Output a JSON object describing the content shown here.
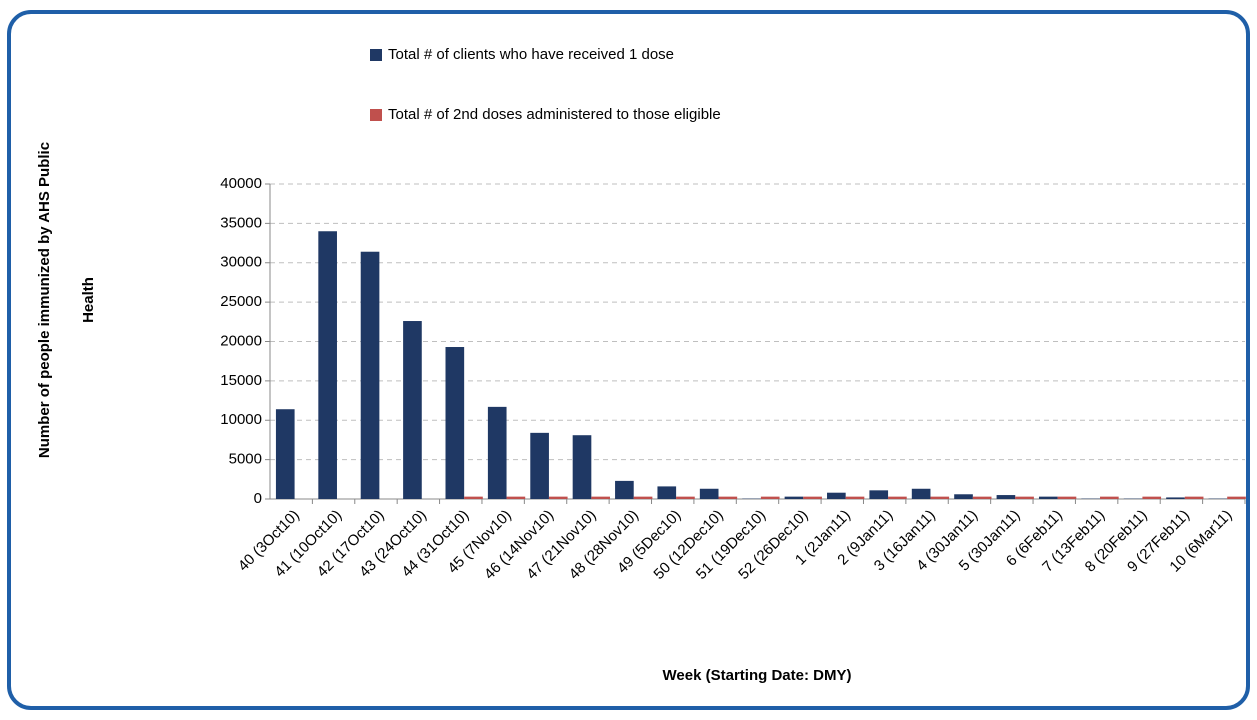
{
  "chart_data": {
    "type": "bar",
    "ylabel": [
      "Number of people immunized by AHS Public",
      "Health"
    ],
    "xlabel": "Week (Starting Date: DMY)",
    "categories": [
      "40 (3Oct10)",
      "41 (10Oct10)",
      "42 (17Oct10)",
      "43 (24Oct10)",
      "44 (31Oct10)",
      "45 (7Nov10)",
      "46 (14Nov10)",
      "47 (21Nov10)",
      "48 (28Nov10)",
      "49 (5Dec10)",
      "50 (12Dec10)",
      "51 (19Dec10)",
      "52 (26Dec10)",
      "1 (2Jan11)",
      "2 (9Jan11)",
      "3 (16Jan11)",
      "4 (30Jan11)",
      "5 (30Jan11)",
      "6 (6Feb11)",
      "7 (13Feb11)",
      "8 (20Feb11)",
      "9 (27Feb11)",
      "10 (6Mar11)"
    ],
    "series": [
      {
        "name": "Total # of clients who have received 1 dose",
        "color": "#1f3864",
        "values": [
          11400,
          34000,
          31400,
          22600,
          19300,
          11700,
          8400,
          8100,
          2300,
          1600,
          1300,
          50,
          300,
          800,
          1100,
          1300,
          600,
          500,
          300,
          50,
          50,
          200,
          50
        ]
      },
      {
        "name": "Total # of 2nd doses administered to those eligible",
        "color": "#c0504d",
        "values": [
          0,
          0,
          0,
          0,
          300,
          300,
          300,
          300,
          300,
          300,
          300,
          300,
          300,
          300,
          300,
          300,
          300,
          300,
          300,
          300,
          300,
          300,
          300
        ]
      }
    ],
    "ylim": [
      0,
      40000
    ],
    "yticks": [
      0,
      5000,
      10000,
      15000,
      20000,
      25000,
      30000,
      35000,
      40000
    ],
    "grid": true
  }
}
